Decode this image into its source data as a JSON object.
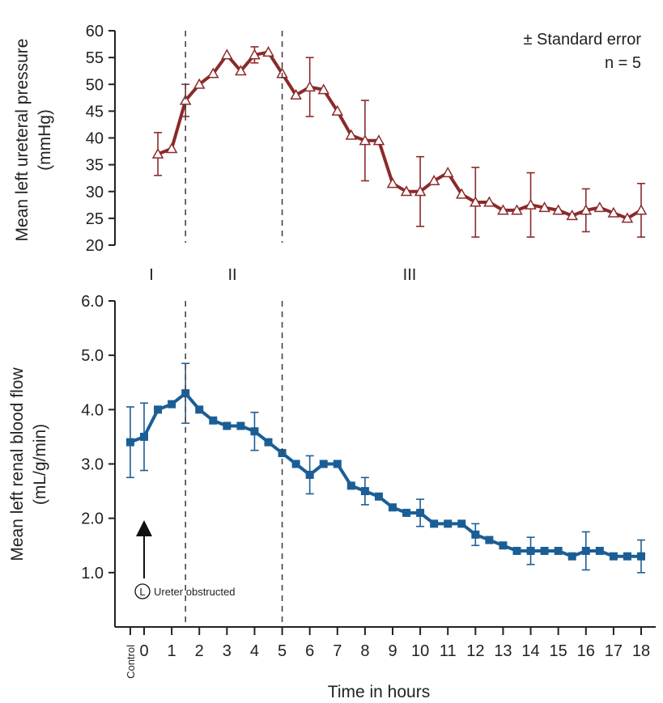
{
  "chart_data": [
    {
      "type": "line",
      "ylabel_lines": [
        "Mean left ureteral pressure",
        "(mmHg)"
      ],
      "ylim": [
        20,
        60
      ],
      "yticks": [
        "60",
        "55",
        "50",
        "45",
        "40",
        "35",
        "30",
        "25",
        "20"
      ],
      "marker": "triangle",
      "color": "#8b2a2a",
      "annotations": [
        "± Standard error",
        "n = 5"
      ],
      "series": [
        {
          "x": [
            0.5,
            1,
            1.5,
            2,
            2.5,
            3,
            3.5,
            4,
            4.5,
            5,
            5.5,
            6,
            6.5,
            7,
            7.5,
            8,
            8.5,
            9,
            9.5,
            10,
            10.5,
            11,
            11.5,
            12,
            12.5,
            13,
            13.5,
            14,
            14.5,
            15,
            15.5,
            16,
            16.5,
            17,
            17.5,
            18
          ],
          "y": [
            37,
            38,
            47,
            50,
            52,
            55.5,
            52.5,
            55.5,
            56,
            52,
            48,
            49.5,
            49,
            45,
            40.5,
            39.5,
            39.5,
            31.5,
            30,
            30,
            32,
            33.5,
            29.5,
            28,
            28,
            26.5,
            26.5,
            27.5,
            27,
            26.5,
            25.5,
            26.5,
            27,
            26,
            25,
            26.5
          ],
          "error": [
            4,
            0,
            3,
            0,
            0,
            0,
            0,
            1.5,
            0,
            0,
            0,
            5.5,
            0,
            0,
            0,
            7.5,
            0,
            0,
            0,
            6.5,
            0,
            0,
            0,
            6.5,
            0,
            0,
            0,
            6,
            0,
            0,
            0,
            4,
            0,
            0,
            0,
            5
          ]
        }
      ]
    },
    {
      "type": "line",
      "ylabel_lines": [
        "Mean left renal blood flow",
        "(mL/g/min)"
      ],
      "ylim": [
        0,
        6
      ],
      "yticks": [
        "6.0",
        "5.0",
        "4.0",
        "3.0",
        "2.0",
        "1.0"
      ],
      "xlabel": "Time in hours",
      "xticks": [
        "Control",
        "0",
        "1",
        "2",
        "3",
        "4",
        "5",
        "6",
        "7",
        "8",
        "9",
        "10",
        "11",
        "12",
        "13",
        "14",
        "15",
        "16",
        "17",
        "18"
      ],
      "marker": "square",
      "color": "#1b5e96",
      "series": [
        {
          "x": [
            -0.5,
            0,
            0.5,
            1,
            1.5,
            2,
            2.5,
            3,
            3.5,
            4,
            4.5,
            5,
            5.5,
            6,
            6.5,
            7,
            7.5,
            8,
            8.5,
            9,
            9.5,
            10,
            10.5,
            11,
            11.5,
            12,
            12.5,
            13,
            13.5,
            14,
            14.5,
            15,
            15.5,
            16,
            16.5,
            17,
            17.5,
            18
          ],
          "y": [
            3.4,
            3.5,
            4.0,
            4.1,
            4.3,
            4.0,
            3.8,
            3.7,
            3.7,
            3.6,
            3.4,
            3.2,
            3.0,
            2.8,
            3.0,
            3.0,
            2.6,
            2.5,
            2.4,
            2.2,
            2.1,
            2.1,
            1.9,
            1.9,
            1.9,
            1.7,
            1.6,
            1.5,
            1.4,
            1.4,
            1.4,
            1.4,
            1.3,
            1.4,
            1.4,
            1.3,
            1.3,
            1.3
          ],
          "error": [
            0.65,
            0.62,
            0,
            0,
            0.55,
            0,
            0,
            0,
            0,
            0.35,
            0,
            0,
            0,
            0.35,
            0,
            0,
            0,
            0.25,
            0,
            0,
            0,
            0.25,
            0,
            0,
            0,
            0.2,
            0,
            0,
            0,
            0.25,
            0,
            0,
            0,
            0.35,
            0,
            0,
            0,
            0.3
          ]
        }
      ],
      "annotation": {
        "badge": "L",
        "text": "Ureter obstructed",
        "x": 0
      }
    }
  ],
  "phases": [
    "I",
    "II",
    "III"
  ],
  "dividers_x": [
    1.5,
    5
  ]
}
